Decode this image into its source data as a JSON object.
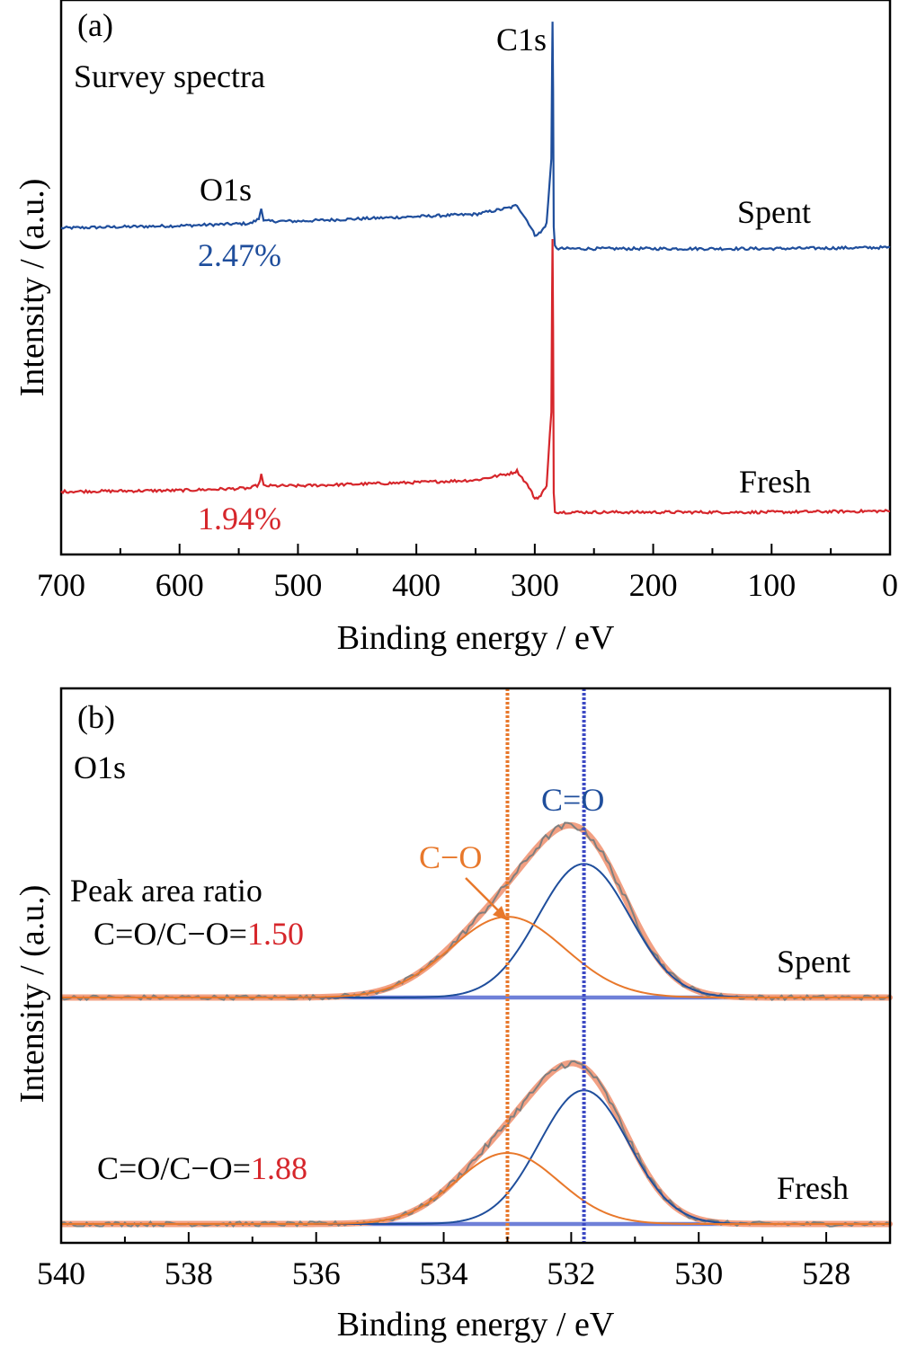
{
  "chart_data": [
    {
      "type": "line",
      "panel_label": "(a)",
      "subtitle": "Survey spectra",
      "xlabel": "Binding energy / eV",
      "ylabel": "Intensity / (a.u.)",
      "xlim": [
        700,
        0
      ],
      "x_reversed": true,
      "xticks": [
        "700",
        "600",
        "500",
        "400",
        "300",
        "200",
        "100",
        "0"
      ],
      "yticks_labels": false,
      "series": [
        {
          "name": "Spent",
          "color": "#1f4e9c",
          "offset": 1.15,
          "points": [
            [
              700,
              0.0
            ],
            [
              600,
              0.01
            ],
            [
              540,
              0.02
            ],
            [
              533,
              0.04
            ],
            [
              531,
              0.09
            ],
            [
              529,
              0.03
            ],
            [
              500,
              0.03
            ],
            [
              400,
              0.05
            ],
            [
              350,
              0.06
            ],
            [
              320,
              0.09
            ],
            [
              315,
              0.1
            ],
            [
              305,
              0.02
            ],
            [
              300,
              -0.03
            ],
            [
              295,
              -0.02
            ],
            [
              290,
              0.02
            ],
            [
              286,
              0.3
            ],
            [
              285.4,
              0.7
            ],
            [
              285,
              0.9
            ],
            [
              284.5,
              0.6
            ],
            [
              284,
              0.0
            ],
            [
              283,
              -0.08
            ],
            [
              280,
              -0.09
            ],
            [
              200,
              -0.09
            ],
            [
              100,
              -0.09
            ],
            [
              5,
              -0.085
            ],
            [
              0,
              -0.085
            ]
          ],
          "annotation": "2.47%"
        },
        {
          "name": "Fresh",
          "color": "#d6262b",
          "offset": 0.0,
          "points": [
            [
              700,
              0.0
            ],
            [
              600,
              0.005
            ],
            [
              540,
              0.015
            ],
            [
              533,
              0.03
            ],
            [
              531,
              0.075
            ],
            [
              529,
              0.025
            ],
            [
              500,
              0.025
            ],
            [
              400,
              0.04
            ],
            [
              350,
              0.05
            ],
            [
              320,
              0.08
            ],
            [
              315,
              0.09
            ],
            [
              305,
              0.02
            ],
            [
              300,
              -0.03
            ],
            [
              295,
              -0.02
            ],
            [
              290,
              0.03
            ],
            [
              286,
              0.35
            ],
            [
              285.4,
              0.85
            ],
            [
              285,
              1.1
            ],
            [
              284.5,
              0.7
            ],
            [
              284,
              0.0
            ],
            [
              283,
              -0.085
            ],
            [
              280,
              -0.09
            ],
            [
              200,
              -0.09
            ],
            [
              100,
              -0.09
            ],
            [
              5,
              -0.085
            ],
            [
              0,
              -0.085
            ]
          ],
          "annotation": "1.94%"
        }
      ],
      "peak_labels": [
        {
          "text": "O1s",
          "x": 531
        },
        {
          "text": "C1s",
          "x": 285
        }
      ]
    },
    {
      "type": "line",
      "panel_label": "(b)",
      "subtitle": "O1s",
      "xlabel": "Binding energy / eV",
      "ylabel": "Intensity / (a.u.)",
      "xlim": [
        540,
        527
      ],
      "x_reversed": true,
      "xticks": [
        "540",
        "538",
        "536",
        "534",
        "532",
        "530",
        "528"
      ],
      "reference_lines": [
        {
          "x": 533.0,
          "color": "#e8782b",
          "label": "C−O"
        },
        {
          "x": 531.8,
          "color": "#3c49c4",
          "label": "C=O"
        }
      ],
      "groups": [
        {
          "name": "Spent",
          "ratio_prefix": "C=O/C−O=",
          "ratio_value": "1.50",
          "extra_label": "Peak area ratio",
          "components": [
            {
              "name": "C=O",
              "color": "#1f4e9c",
              "center": 531.8,
              "height": 0.96,
              "width": 0.72
            },
            {
              "name": "C−O",
              "color": "#e8782b",
              "center": 533.0,
              "height": 0.58,
              "width": 0.9
            }
          ]
        },
        {
          "name": "Fresh",
          "ratio_prefix": "C=O/C−O=",
          "ratio_value": "1.88",
          "components": [
            {
              "name": "C=O",
              "color": "#1f4e9c",
              "center": 531.8,
              "height": 0.96,
              "width": 0.7
            },
            {
              "name": "C−O",
              "color": "#e8782b",
              "center": 533.0,
              "height": 0.51,
              "width": 0.8
            }
          ]
        }
      ],
      "colors": {
        "raw": "#7f7f7f",
        "envelope": "#f2a083",
        "baseline": "#6f80d8",
        "ratio_value": "#d6262b"
      }
    }
  ]
}
